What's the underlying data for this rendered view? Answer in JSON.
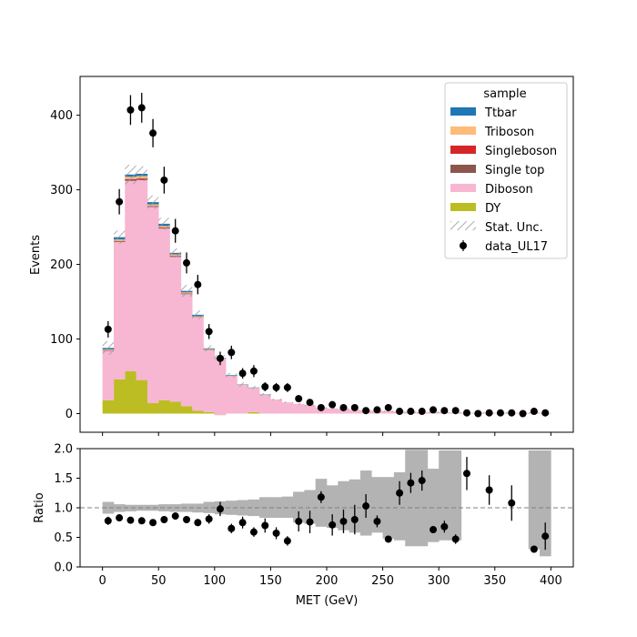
{
  "chart_data": {
    "type": "bar",
    "bin_width": 10,
    "bin_centers": [
      5,
      15,
      25,
      35,
      45,
      55,
      65,
      75,
      85,
      95,
      105,
      115,
      125,
      135,
      145,
      155,
      165,
      175,
      185,
      195,
      205,
      215,
      225,
      235,
      245,
      255,
      265,
      275,
      285,
      295,
      305,
      315,
      325,
      335,
      345,
      355,
      365,
      375,
      385,
      395
    ],
    "xlabel": "MET (GeV)",
    "ylabel": "Events",
    "ratio_ylabel": "Ratio",
    "xlim": [
      -20,
      420
    ],
    "ylim": [
      -25,
      452
    ],
    "ratio_ylim": [
      0,
      2
    ],
    "xticks": [
      0,
      50,
      100,
      150,
      200,
      250,
      300,
      350,
      400
    ],
    "yticks": [
      0,
      100,
      200,
      300,
      400
    ],
    "ratio_yticks": [
      "0.0",
      "0.5",
      "1.0",
      "1.5",
      "2.0"
    ],
    "ratio_reference_line": 1.0,
    "legend": {
      "title": "sample",
      "placement": "top-right",
      "entries": [
        "Ttbar",
        "Triboson",
        "Singleboson",
        "Single top",
        "Diboson",
        "DY",
        "Stat. Unc.",
        "data_UL17"
      ]
    },
    "stack_series": [
      {
        "name": "DY",
        "color": "#bcbd22",
        "values": [
          18,
          46,
          57,
          45,
          14,
          18,
          16,
          10,
          4,
          2,
          -2,
          0,
          0,
          2,
          0,
          0,
          0,
          0,
          0,
          0,
          0,
          0,
          0,
          0,
          0,
          0,
          0,
          0,
          0,
          0,
          0,
          0,
          0,
          0,
          0,
          0,
          0,
          0,
          0,
          0
        ]
      },
      {
        "name": "Diboson",
        "color": "#f7b6d2",
        "values": [
          66,
          184,
          255,
          268,
          263,
          230,
          194,
          150,
          125,
          83,
          75,
          50,
          38,
          32,
          25,
          19,
          15,
          13,
          11,
          8,
          7,
          6,
          5,
          4,
          4,
          3,
          3,
          2,
          2,
          2,
          2,
          1,
          1,
          1,
          1,
          1,
          1,
          1,
          1,
          1
        ]
      },
      {
        "name": "Single top",
        "color": "#8c564b",
        "values": [
          0.5,
          1,
          1.5,
          1.5,
          1,
          1,
          1,
          0.5,
          0.5,
          0.5,
          0,
          0,
          0,
          0,
          0,
          0,
          0,
          0,
          0,
          0,
          0,
          0,
          0,
          0,
          0,
          0,
          0,
          0,
          0,
          0,
          0,
          0,
          0,
          0,
          0,
          0,
          0,
          0,
          0,
          0
        ]
      },
      {
        "name": "Singleboson",
        "color": "#d62728",
        "values": [
          0.5,
          0.5,
          1,
          1,
          0.5,
          0.5,
          0.5,
          0.5,
          0,
          0,
          0,
          0,
          0,
          0,
          0,
          0,
          0,
          0,
          0,
          0,
          0,
          0,
          0,
          0,
          0,
          0,
          0,
          0,
          0,
          0,
          0,
          0,
          0,
          0,
          0,
          0,
          0,
          0,
          0,
          0
        ]
      },
      {
        "name": "Triboson",
        "color": "#ffbb78",
        "values": [
          1,
          2,
          3,
          3,
          2,
          2,
          2,
          1.5,
          1,
          1,
          0.5,
          0.5,
          0.5,
          0.5,
          0,
          0,
          0,
          0,
          0,
          0,
          0,
          0,
          0,
          0,
          0,
          0,
          0,
          0,
          0,
          0,
          0,
          0,
          0,
          0,
          0,
          0,
          0,
          0,
          0,
          0
        ]
      },
      {
        "name": "Ttbar",
        "color": "#1f77b4",
        "values": [
          2,
          3,
          3,
          3,
          3,
          3,
          2,
          2,
          2,
          1,
          1,
          1,
          0.5,
          0.5,
          0.5,
          0,
          0,
          0,
          0,
          0,
          0,
          0,
          0,
          0,
          0,
          0,
          0,
          0,
          0,
          0,
          0,
          0,
          0,
          0,
          0,
          0,
          0,
          0,
          0,
          0
        ]
      }
    ],
    "stat_unc": [
      9,
      9,
      13,
      10,
      9,
      8,
      6,
      8,
      6,
      4,
      4,
      3,
      3,
      2,
      2,
      1,
      1,
      1,
      1,
      1,
      1,
      1,
      1,
      1,
      1,
      1,
      1,
      1,
      1,
      1,
      1,
      1,
      1,
      1,
      1,
      1,
      1,
      1,
      1,
      1
    ],
    "data": {
      "name": "data_UL17",
      "values": [
        113,
        284,
        407,
        410,
        376,
        313,
        245,
        202,
        173,
        110,
        74,
        82,
        54,
        57,
        36,
        35,
        35,
        20,
        15,
        8,
        12,
        8,
        8,
        4,
        5,
        8,
        3,
        3,
        3,
        5,
        4,
        4,
        1,
        0,
        1,
        1,
        1,
        0,
        3,
        1
      ],
      "errors": [
        11,
        17,
        20,
        20,
        19,
        18,
        16,
        14,
        13,
        10,
        9,
        9,
        7,
        8,
        6,
        6,
        6,
        4.5,
        3.9,
        2.8,
        3.5,
        2.8,
        2.8,
        2,
        2.2,
        2.8,
        1.7,
        1.7,
        1.7,
        2.2,
        2,
        2,
        1,
        0,
        1,
        1,
        1,
        0,
        1.7,
        1
      ]
    },
    "ratio": {
      "points": [
        [
          5,
          0.78,
          0.07
        ],
        [
          15,
          0.83,
          0.05
        ],
        [
          25,
          0.79,
          0.04
        ],
        [
          35,
          0.78,
          0.04
        ],
        [
          45,
          0.75,
          0.04
        ],
        [
          55,
          0.8,
          0.05
        ],
        [
          65,
          0.86,
          0.06
        ],
        [
          75,
          0.8,
          0.06
        ],
        [
          85,
          0.75,
          0.06
        ],
        [
          95,
          0.81,
          0.08
        ],
        [
          105,
          0.98,
          0.12
        ],
        [
          115,
          0.65,
          0.08
        ],
        [
          125,
          0.75,
          0.1
        ],
        [
          135,
          0.59,
          0.08
        ],
        [
          145,
          0.7,
          0.12
        ],
        [
          155,
          0.57,
          0.1
        ],
        [
          165,
          0.44,
          0.08
        ],
        [
          175,
          0.77,
          0.17
        ],
        [
          185,
          0.76,
          0.19
        ],
        [
          195,
          1.18,
          0.1
        ],
        [
          205,
          0.71,
          0.18
        ],
        [
          215,
          0.77,
          0.2
        ],
        [
          225,
          0.8,
          0.25
        ],
        [
          235,
          1.03,
          0.2
        ],
        [
          245,
          0.77,
          0.1
        ],
        [
          255,
          0.47,
          0.05
        ],
        [
          265,
          1.25,
          0.2
        ],
        [
          275,
          1.42,
          0.17
        ],
        [
          285,
          1.46,
          0.17
        ],
        [
          295,
          0.63,
          0.05
        ],
        [
          305,
          0.68,
          0.1
        ],
        [
          315,
          0.47,
          0.08
        ],
        [
          325,
          1.58,
          0.28
        ],
        [
          345,
          1.3,
          0.25
        ],
        [
          365,
          1.08,
          0.3
        ],
        [
          385,
          0.3,
          0.05
        ],
        [
          395,
          0.52,
          0.23
        ]
      ],
      "unc_band": [
        [
          0.9,
          1.1
        ],
        [
          0.93,
          1.06
        ],
        [
          0.94,
          1.05
        ],
        [
          0.95,
          1.05
        ],
        [
          0.95,
          1.05
        ],
        [
          0.94,
          1.06
        ],
        [
          0.93,
          1.06
        ],
        [
          0.93,
          1.07
        ],
        [
          0.92,
          1.07
        ],
        [
          0.91,
          1.1
        ],
        [
          0.89,
          1.11
        ],
        [
          0.88,
          1.12
        ],
        [
          0.87,
          1.13
        ],
        [
          0.86,
          1.14
        ],
        [
          0.83,
          1.18
        ],
        [
          0.83,
          1.18
        ],
        [
          0.83,
          1.19
        ],
        [
          0.75,
          1.27
        ],
        [
          0.73,
          1.3
        ],
        [
          0.68,
          1.49
        ],
        [
          0.66,
          1.38
        ],
        [
          0.62,
          1.45
        ],
        [
          0.58,
          1.48
        ],
        [
          0.53,
          1.63
        ],
        [
          0.58,
          1.52
        ],
        [
          0.48,
          1.52
        ],
        [
          0.45,
          1.6
        ],
        [
          0.35,
          1.98
        ],
        [
          0.35,
          1.98
        ],
        [
          0.42,
          1.66
        ],
        [
          0.45,
          1.97
        ],
        [
          0.45,
          1.97
        ],
        null,
        null,
        null,
        null,
        null,
        null,
        [
          0.3,
          1.97
        ],
        [
          0.18,
          1.97
        ]
      ]
    }
  }
}
